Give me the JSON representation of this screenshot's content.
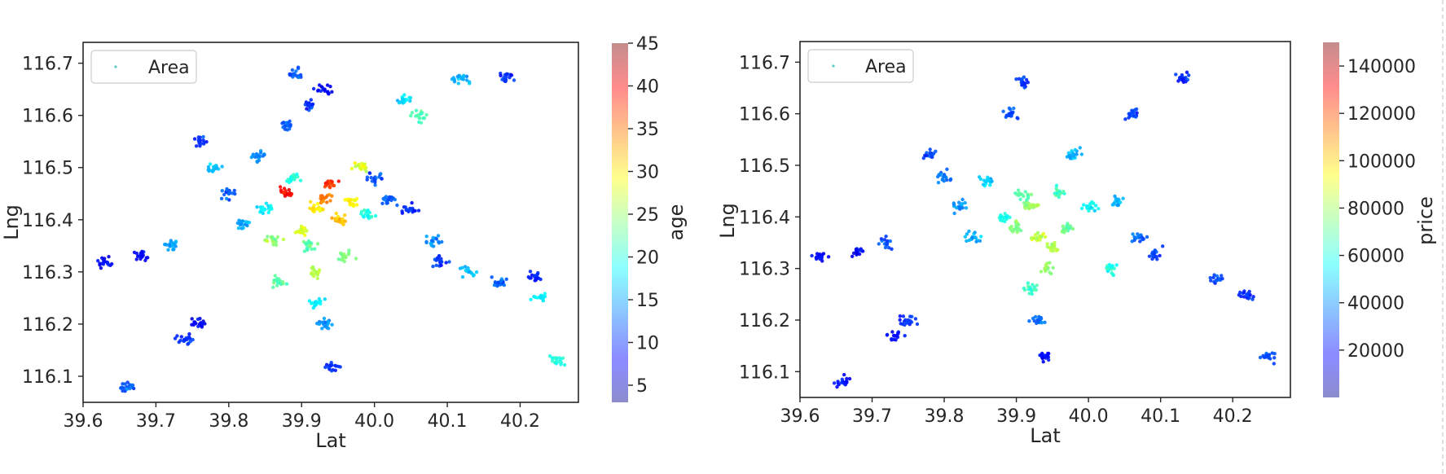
{
  "chart_data": [
    {
      "type": "scatter",
      "xlabel": "Lat",
      "ylabel": "Lng",
      "xlim": [
        39.6,
        40.28
      ],
      "ylim": [
        116.05,
        116.74
      ],
      "xticks": [
        "39.6",
        "39.7",
        "39.8",
        "39.9",
        "40.0",
        "40.1",
        "40.2"
      ],
      "yticks": [
        "116.1",
        "116.2",
        "116.3",
        "116.4",
        "116.5",
        "116.6",
        "116.7"
      ],
      "legend": {
        "label": "Area",
        "loc": "upper left"
      },
      "colorbar": {
        "label": "age",
        "colormap": "jet",
        "range": [
          3,
          45
        ],
        "ticks": [
          "5",
          "10",
          "15",
          "20",
          "25",
          "30",
          "35",
          "40",
          "45"
        ]
      },
      "series": [
        {
          "name": "Area",
          "color_by": "age",
          "points": [
            [
              39.92,
              116.42,
              30
            ],
            [
              39.9,
              116.38,
              28
            ],
            [
              39.88,
              116.45,
              40
            ],
            [
              39.93,
              116.44,
              35
            ],
            [
              39.95,
              116.4,
              32
            ],
            [
              39.86,
              116.36,
              25
            ],
            [
              39.91,
              116.35,
              22
            ],
            [
              39.94,
              116.47,
              38
            ],
            [
              39.97,
              116.43,
              30
            ],
            [
              39.89,
              116.48,
              20
            ],
            [
              39.85,
              116.42,
              18
            ],
            [
              39.92,
              116.3,
              26
            ],
            [
              39.96,
              116.33,
              24
            ],
            [
              39.99,
              116.41,
              20
            ],
            [
              40.02,
              116.44,
              12
            ],
            [
              40.05,
              116.42,
              10
            ],
            [
              40.08,
              116.36,
              14
            ],
            [
              40.09,
              116.32,
              10
            ],
            [
              39.82,
              116.39,
              15
            ],
            [
              39.8,
              116.45,
              12
            ],
            [
              39.78,
              116.5,
              16
            ],
            [
              39.76,
              116.55,
              10
            ],
            [
              39.84,
              116.52,
              14
            ],
            [
              39.88,
              116.58,
              12
            ],
            [
              39.91,
              116.62,
              10
            ],
            [
              39.89,
              116.68,
              12
            ],
            [
              39.93,
              116.65,
              8
            ],
            [
              40.04,
              116.63,
              18
            ],
            [
              40.06,
              116.6,
              22
            ],
            [
              40.12,
              116.67,
              15
            ],
            [
              40.18,
              116.67,
              10
            ],
            [
              40.23,
              116.25,
              18
            ],
            [
              40.22,
              116.29,
              10
            ],
            [
              40.17,
              116.28,
              12
            ],
            [
              40.13,
              116.3,
              16
            ],
            [
              39.93,
              116.2,
              14
            ],
            [
              39.92,
              116.24,
              18
            ],
            [
              39.94,
              116.12,
              10
            ],
            [
              39.76,
              116.2,
              8
            ],
            [
              39.74,
              116.17,
              10
            ],
            [
              39.72,
              116.35,
              15
            ],
            [
              39.68,
              116.33,
              8
            ],
            [
              39.63,
              116.32,
              8
            ],
            [
              39.66,
              116.08,
              12
            ],
            [
              40.25,
              116.13,
              20
            ],
            [
              39.87,
              116.28,
              22
            ],
            [
              39.98,
              116.5,
              28
            ],
            [
              40.0,
              116.48,
              12
            ]
          ]
        }
      ]
    },
    {
      "type": "scatter",
      "xlabel": "Lat",
      "ylabel": "Lng",
      "xlim": [
        39.6,
        40.28
      ],
      "ylim": [
        116.05,
        116.74
      ],
      "xticks": [
        "39.6",
        "39.7",
        "39.8",
        "39.9",
        "40.0",
        "40.1",
        "40.2"
      ],
      "yticks": [
        "116.1",
        "116.2",
        "116.3",
        "116.4",
        "116.5",
        "116.6",
        "116.7"
      ],
      "legend": {
        "label": "Area",
        "loc": "upper left"
      },
      "colorbar": {
        "label": "price",
        "colormap": "jet",
        "range": [
          0,
          150000
        ],
        "ticks": [
          "20000",
          "40000",
          "60000",
          "80000",
          "100000",
          "120000",
          "140000"
        ]
      },
      "series": [
        {
          "name": "Area",
          "color_by": "price",
          "points": [
            [
              39.92,
              116.42,
              80000
            ],
            [
              39.9,
              116.38,
              75000
            ],
            [
              39.93,
              116.36,
              85000
            ],
            [
              39.95,
              116.34,
              82000
            ],
            [
              39.91,
              116.44,
              70000
            ],
            [
              39.96,
              116.45,
              65000
            ],
            [
              39.88,
              116.4,
              60000
            ],
            [
              39.94,
              116.3,
              78000
            ],
            [
              39.97,
              116.38,
              72000
            ],
            [
              40.0,
              116.42,
              55000
            ],
            [
              39.86,
              116.47,
              50000
            ],
            [
              39.84,
              116.36,
              45000
            ],
            [
              39.82,
              116.42,
              40000
            ],
            [
              40.04,
              116.43,
              45000
            ],
            [
              40.07,
              116.36,
              35000
            ],
            [
              40.09,
              116.33,
              30000
            ],
            [
              40.03,
              116.3,
              60000
            ],
            [
              39.8,
              116.48,
              35000
            ],
            [
              39.78,
              116.52,
              30000
            ],
            [
              39.89,
              116.6,
              30000
            ],
            [
              39.91,
              116.66,
              25000
            ],
            [
              40.06,
              116.6,
              30000
            ],
            [
              40.13,
              116.67,
              25000
            ],
            [
              40.22,
              116.25,
              25000
            ],
            [
              40.18,
              116.28,
              30000
            ],
            [
              39.93,
              116.2,
              35000
            ],
            [
              39.94,
              116.13,
              20000
            ],
            [
              39.75,
              116.2,
              25000
            ],
            [
              39.73,
              116.17,
              20000
            ],
            [
              39.72,
              116.35,
              30000
            ],
            [
              39.68,
              116.33,
              20000
            ],
            [
              39.63,
              116.32,
              20000
            ],
            [
              39.66,
              116.08,
              20000
            ],
            [
              40.25,
              116.13,
              30000
            ],
            [
              39.92,
              116.26,
              65000
            ],
            [
              39.98,
              116.52,
              45000
            ]
          ]
        }
      ]
    }
  ]
}
